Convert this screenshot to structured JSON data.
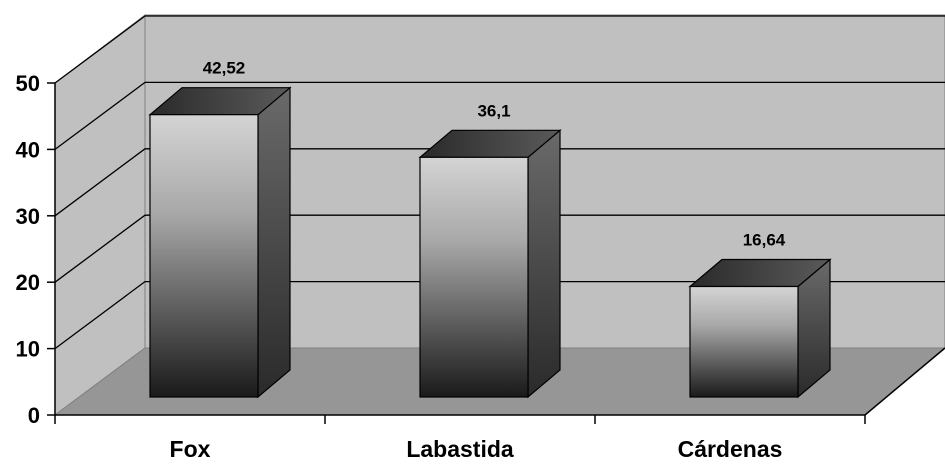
{
  "chart_data": {
    "type": "bar",
    "categories": [
      "Fox",
      "Labastida",
      "Cárdenas"
    ],
    "values": [
      42.52,
      36.1,
      16.64
    ],
    "data_labels": [
      "42,52",
      "36,1",
      "16,64"
    ],
    "y_ticks": [
      "0",
      "10",
      "20",
      "30",
      "40",
      "50"
    ],
    "ylim": [
      0,
      50
    ],
    "grid": true,
    "style": "3d-column",
    "colors": {
      "back_wall": "#c0c0c0",
      "floor": "#969696",
      "bar_light": "#d4d4d4",
      "bar_dark": "#1a1a1a",
      "bar_side": "#4a4a4a",
      "bar_top": "#3a3a3a"
    }
  }
}
